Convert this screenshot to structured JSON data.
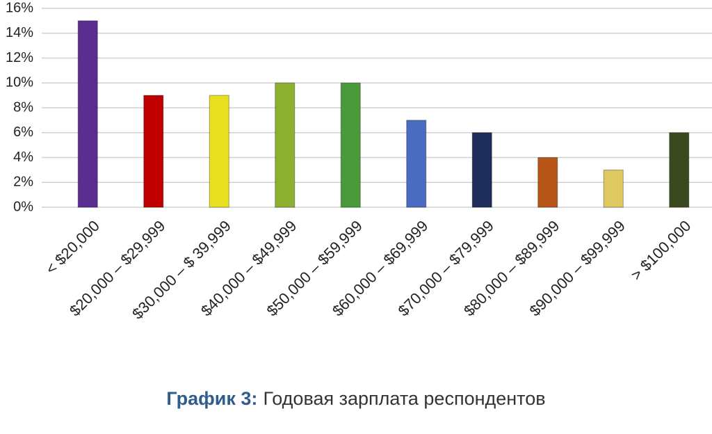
{
  "chart_data": {
    "type": "bar",
    "categories": [
      "< $20,000",
      "$20,000 – $29,999",
      "$30,000 – $ 39,999",
      "$40,000 – $49,999",
      "$50,000 – $59,999",
      "$60,000 – $69,999",
      "$70,000 – $79,999",
      "$80,000 – $89,999",
      "$90,000 – $99,999",
      "> $100,000"
    ],
    "values": [
      15,
      9,
      9,
      10,
      10,
      7,
      6,
      4,
      3,
      6
    ],
    "colors": [
      "#5b2d91",
      "#c00000",
      "#e8e020",
      "#8db030",
      "#4a9a3c",
      "#4a6cc0",
      "#1f2d5a",
      "#b8561a",
      "#e0c860",
      "#3a4a1e"
    ],
    "ylim": [
      0,
      16
    ],
    "yticks": [
      {
        "value": 0,
        "label": "0%"
      },
      {
        "value": 2,
        "label": "2%"
      },
      {
        "value": 4,
        "label": "4%"
      },
      {
        "value": 6,
        "label": "6%"
      },
      {
        "value": 8,
        "label": "8%"
      },
      {
        "value": 10,
        "label": "10%"
      },
      {
        "value": 12,
        "label": "12%"
      },
      {
        "value": 14,
        "label": "14%"
      },
      {
        "value": 16,
        "label": "16%"
      }
    ],
    "grid": true,
    "caption": {
      "label": "График 3:",
      "text": "Годовая зарплата респондентов"
    }
  }
}
